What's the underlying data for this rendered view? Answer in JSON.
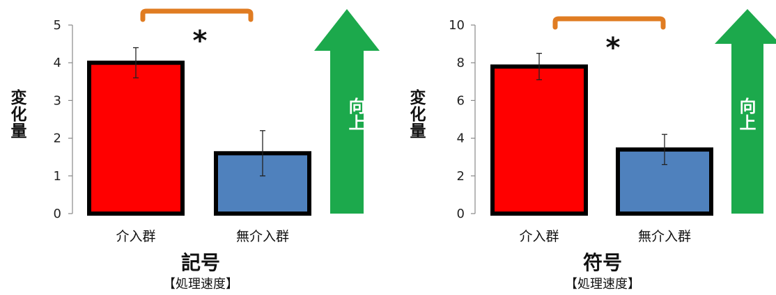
{
  "chart_data": [
    {
      "type": "bar",
      "title": "記号",
      "subtitle": "【処理速度】",
      "ylabel": "変化量",
      "categories": [
        "介入群",
        "無介入群"
      ],
      "values": [
        4.0,
        1.6
      ],
      "errors": [
        0.4,
        0.6
      ],
      "colors": [
        "#ff0000",
        "#4f81bd"
      ],
      "ylim": [
        0,
        5
      ],
      "yticks": [
        0,
        1,
        2,
        3,
        4,
        5
      ],
      "significance": "*",
      "arrow_label": "向上",
      "arrow_color": "#1ca94c",
      "bracket_color": "#e07c22"
    },
    {
      "type": "bar",
      "title": "符号",
      "subtitle": "【処理速度】",
      "ylabel": "変化量",
      "categories": [
        "介入群",
        "無介入群"
      ],
      "values": [
        7.8,
        3.4
      ],
      "errors": [
        0.7,
        0.8
      ],
      "colors": [
        "#ff0000",
        "#4f81bd"
      ],
      "ylim": [
        0,
        10
      ],
      "yticks": [
        0,
        2,
        4,
        6,
        8,
        10
      ],
      "significance": "*",
      "arrow_label": "向上",
      "arrow_color": "#1ca94c",
      "bracket_color": "#e07c22"
    }
  ]
}
